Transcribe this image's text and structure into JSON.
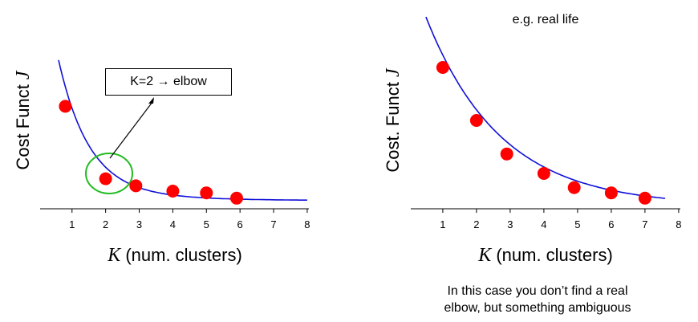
{
  "chart_data": [
    {
      "type": "line",
      "xlabel_var": "K",
      "xlabel_rest": " (num. clusters)",
      "ylabel_text": "Cost Funct ",
      "ylabel_var": "J",
      "x_ticks": [
        "1",
        "2",
        "3",
        "4",
        "5",
        "6",
        "7",
        "8"
      ],
      "xlim": [
        0.05,
        8.05
      ],
      "ylim": [
        0,
        1
      ],
      "points": [
        {
          "x": 0.8,
          "y": 0.58
        },
        {
          "x": 2.0,
          "y": 0.17
        },
        {
          "x": 2.9,
          "y": 0.13
        },
        {
          "x": 4.0,
          "y": 0.1
        },
        {
          "x": 5.0,
          "y": 0.09
        },
        {
          "x": 5.9,
          "y": 0.06
        }
      ],
      "annotation": "K=2 → elbow",
      "colors": {
        "curve": "#1010d8",
        "points": "#ff0000",
        "highlight": "#22bb22"
      }
    },
    {
      "type": "line",
      "title": "e.g. real life",
      "xlabel_var": "K",
      "xlabel_rest": " (num. clusters)",
      "ylabel_text": "Cost. Funct ",
      "ylabel_var": "J",
      "x_ticks": [
        "1",
        "2",
        "3",
        "4",
        "5",
        "6",
        "7",
        "8"
      ],
      "xlim": [
        0.05,
        8.05
      ],
      "ylim": [
        0,
        1
      ],
      "points": [
        {
          "x": 1.0,
          "y": 0.8
        },
        {
          "x": 2.0,
          "y": 0.5
        },
        {
          "x": 2.9,
          "y": 0.31
        },
        {
          "x": 4.0,
          "y": 0.2
        },
        {
          "x": 4.9,
          "y": 0.12
        },
        {
          "x": 6.0,
          "y": 0.09
        },
        {
          "x": 7.0,
          "y": 0.06
        }
      ],
      "caption_line1": "In this case you don’t find a real",
      "caption_line2": "elbow, but something ambiguous",
      "colors": {
        "curve": "#1010d8",
        "points": "#ff0000"
      }
    }
  ]
}
